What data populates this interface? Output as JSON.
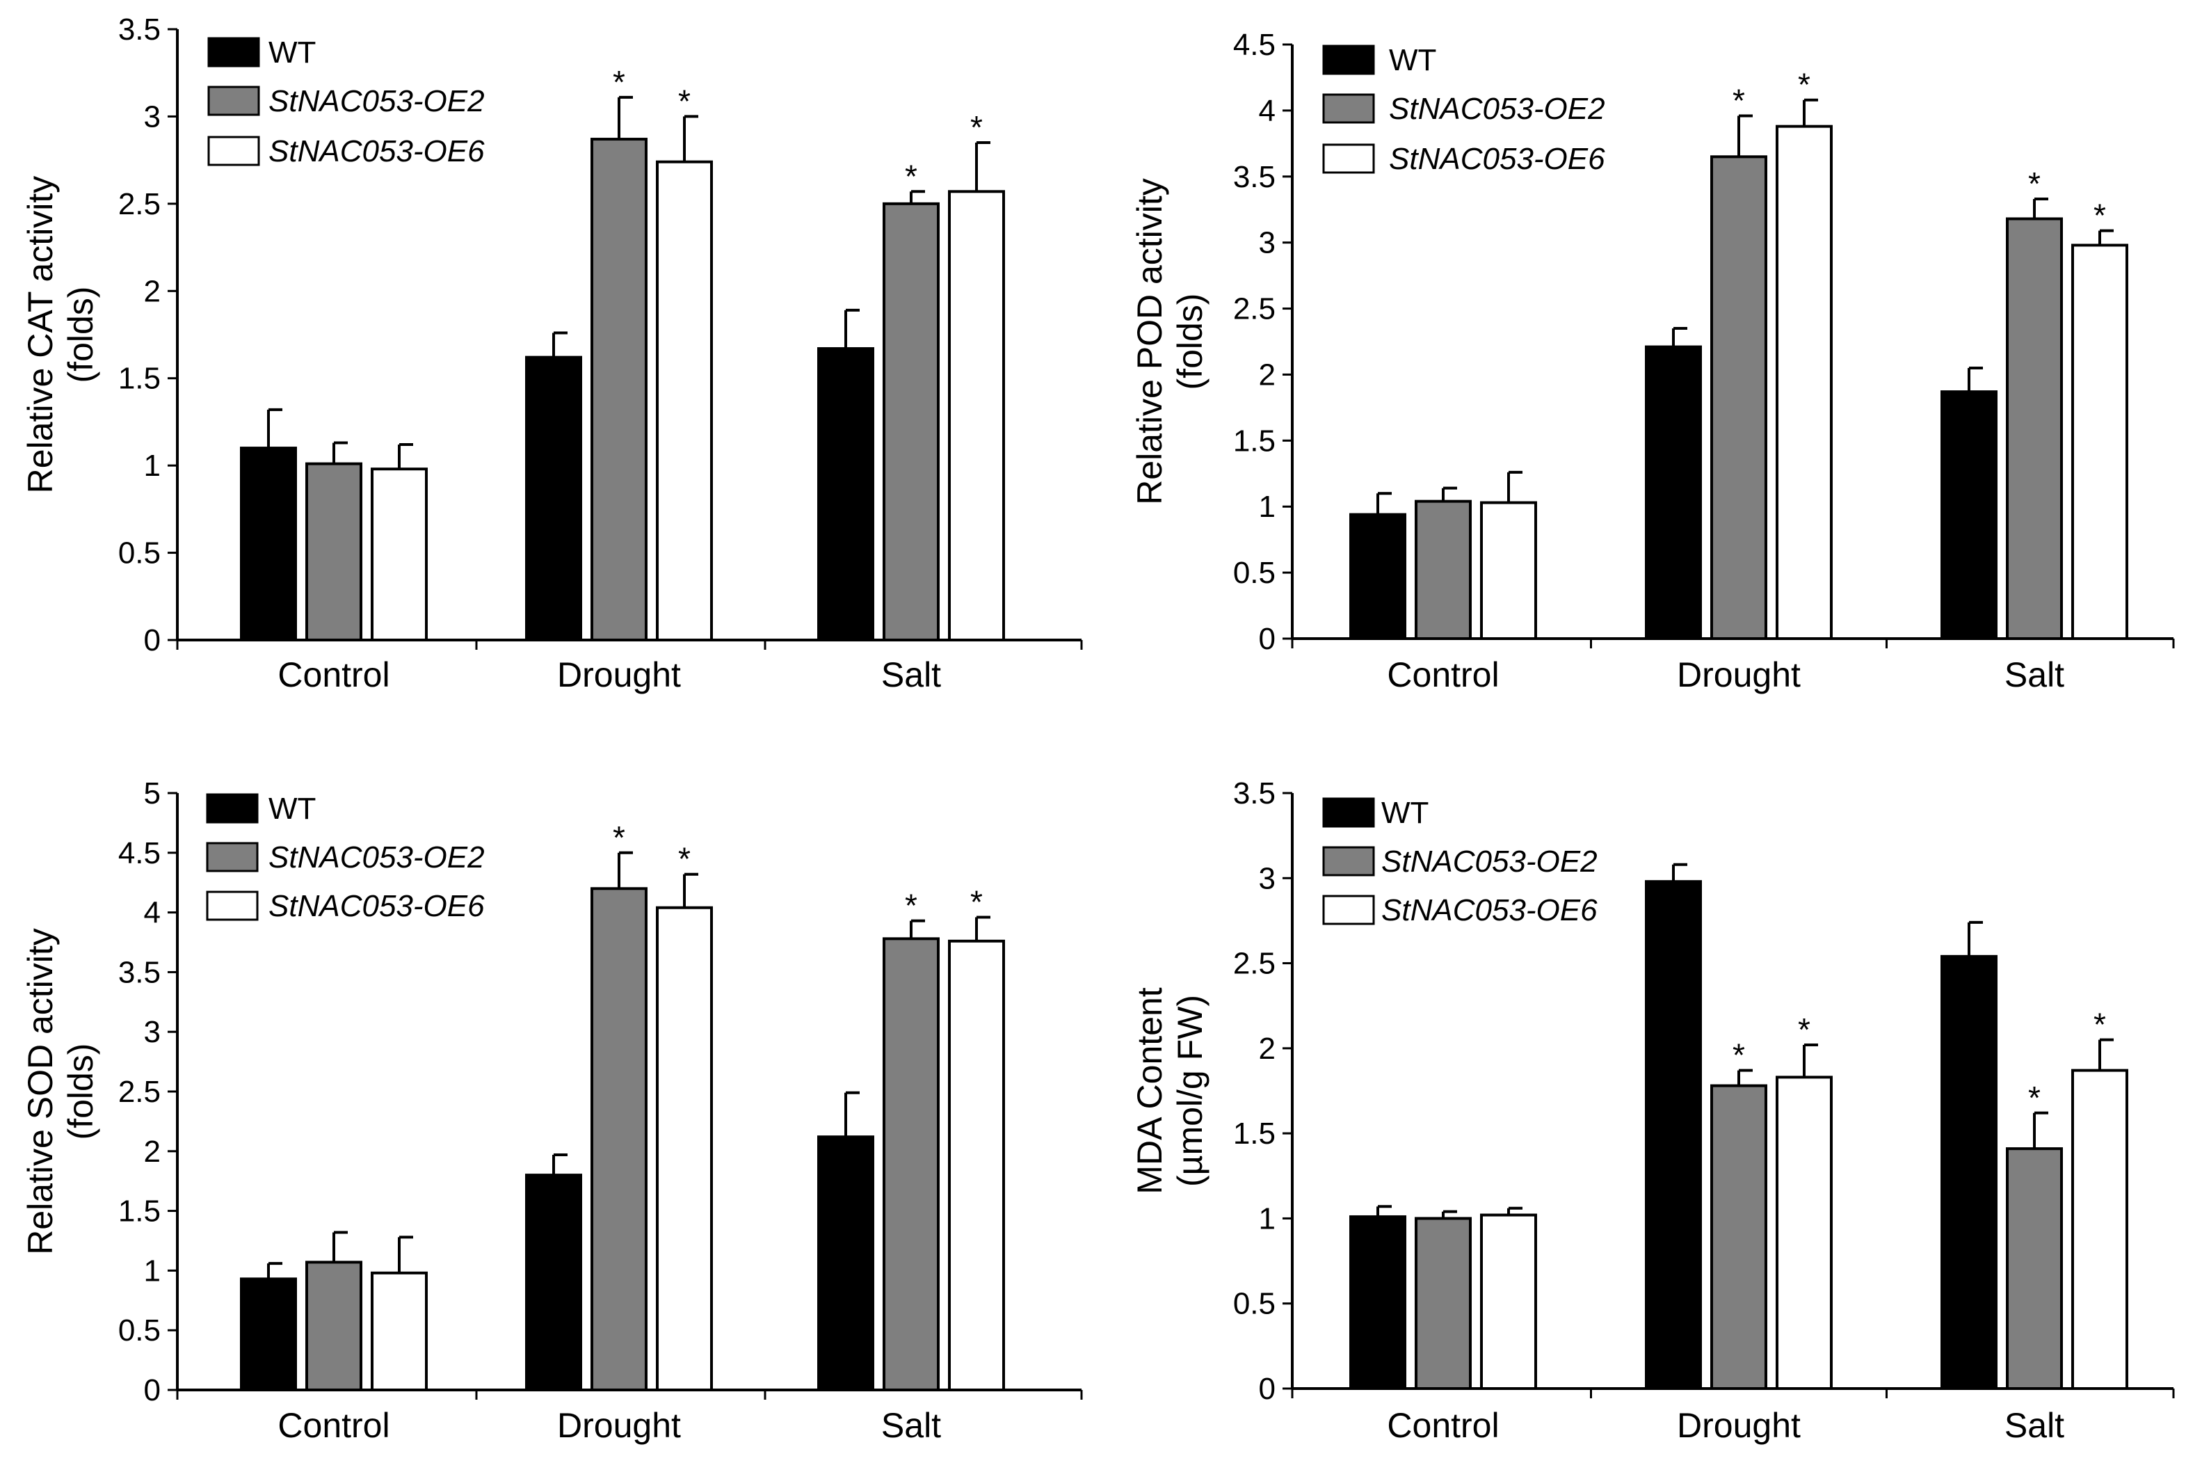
{
  "legend": [
    {
      "label": "WT",
      "color": "#000000",
      "italic": false
    },
    {
      "label": "StNAC053-OE2",
      "color": "#7f7f7f",
      "italic": true
    },
    {
      "label": "StNAC053-OE6",
      "color": "#ffffff",
      "italic": true
    }
  ],
  "chart_data": [
    {
      "type": "bar",
      "panel": "top-left",
      "ylabel_line1": "Relative CAT activity",
      "ylabel_line2": "(folds)",
      "ylim": [
        0,
        3.5
      ],
      "ticks": [
        "0",
        "0.5",
        "1",
        "1.5",
        "2",
        "2.5",
        "3",
        "3.5"
      ],
      "categories": [
        "Control",
        "Drought",
        "Salt"
      ],
      "legend_position": "top-left",
      "series": [
        {
          "name": "WT",
          "values": [
            1.1,
            1.62,
            1.67
          ],
          "errors": [
            0.22,
            0.14,
            0.22
          ],
          "significant": [
            false,
            false,
            false
          ]
        },
        {
          "name": "StNAC053-OE2",
          "values": [
            1.01,
            2.87,
            2.5
          ],
          "errors": [
            0.12,
            0.24,
            0.07
          ],
          "significant": [
            false,
            true,
            true
          ]
        },
        {
          "name": "StNAC053-OE6",
          "values": [
            0.98,
            2.74,
            2.57
          ],
          "errors": [
            0.14,
            0.26,
            0.28
          ],
          "significant": [
            false,
            true,
            true
          ]
        }
      ]
    },
    {
      "type": "bar",
      "panel": "top-right",
      "ylabel_line1": "Relative POD activity",
      "ylabel_line2": "(folds)",
      "ylim": [
        0,
        4.5
      ],
      "ticks": [
        "0",
        "0.5",
        "1",
        "1.5",
        "2",
        "2.5",
        "3",
        "3.5",
        "4",
        "4.5"
      ],
      "categories": [
        "Control",
        "Drought",
        "Salt"
      ],
      "legend_position": "top-left",
      "series": [
        {
          "name": "WT",
          "values": [
            0.94,
            2.21,
            1.87
          ],
          "errors": [
            0.16,
            0.14,
            0.18
          ],
          "significant": [
            false,
            false,
            false
          ]
        },
        {
          "name": "StNAC053-OE2",
          "values": [
            1.04,
            3.65,
            3.18
          ],
          "errors": [
            0.1,
            0.31,
            0.15
          ],
          "significant": [
            false,
            true,
            true
          ]
        },
        {
          "name": "StNAC053-OE6",
          "values": [
            1.03,
            3.88,
            2.98
          ],
          "errors": [
            0.23,
            0.2,
            0.11
          ],
          "significant": [
            false,
            true,
            true
          ]
        }
      ]
    },
    {
      "type": "bar",
      "panel": "bottom-left",
      "ylabel_line1": "Relative SOD activity",
      "ylabel_line2": "(folds)",
      "ylim": [
        0,
        5
      ],
      "ticks": [
        "0",
        "0.5",
        "1",
        "1.5",
        "2",
        "2.5",
        "3",
        "3.5",
        "4",
        "4.5",
        "5"
      ],
      "categories": [
        "Control",
        "Drought",
        "Salt"
      ],
      "legend_position": "top-left",
      "series": [
        {
          "name": "WT",
          "values": [
            0.93,
            1.8,
            2.12
          ],
          "errors": [
            0.13,
            0.17,
            0.37
          ],
          "significant": [
            false,
            false,
            false
          ]
        },
        {
          "name": "StNAC053-OE2",
          "values": [
            1.07,
            4.2,
            3.78
          ],
          "errors": [
            0.25,
            0.3,
            0.15
          ],
          "significant": [
            false,
            true,
            true
          ]
        },
        {
          "name": "StNAC053-OE6",
          "values": [
            0.98,
            4.04,
            3.76
          ],
          "errors": [
            0.3,
            0.28,
            0.2
          ],
          "significant": [
            false,
            true,
            true
          ]
        }
      ]
    },
    {
      "type": "bar",
      "panel": "bottom-right",
      "ylabel_line1": "MDA Content",
      "ylabel_line2": "(µmol/g FW)",
      "ylim": [
        0,
        3.5
      ],
      "ticks": [
        "0",
        "0.5",
        "1",
        "1.5",
        "2",
        "2.5",
        "3",
        "3.5"
      ],
      "categories": [
        "Control",
        "Drought",
        "Salt"
      ],
      "legend_position": "top-left",
      "series": [
        {
          "name": "WT",
          "values": [
            1.01,
            2.98,
            2.54
          ],
          "errors": [
            0.06,
            0.1,
            0.2
          ],
          "significant": [
            false,
            false,
            false
          ]
        },
        {
          "name": "StNAC053-OE2",
          "values": [
            1.0,
            1.78,
            1.41
          ],
          "errors": [
            0.04,
            0.09,
            0.21
          ],
          "significant": [
            false,
            true,
            true
          ]
        },
        {
          "name": "StNAC053-OE6",
          "values": [
            1.02,
            1.83,
            1.87
          ],
          "errors": [
            0.04,
            0.19,
            0.18
          ],
          "significant": [
            false,
            true,
            true
          ]
        }
      ]
    }
  ],
  "significance_marker": "*"
}
